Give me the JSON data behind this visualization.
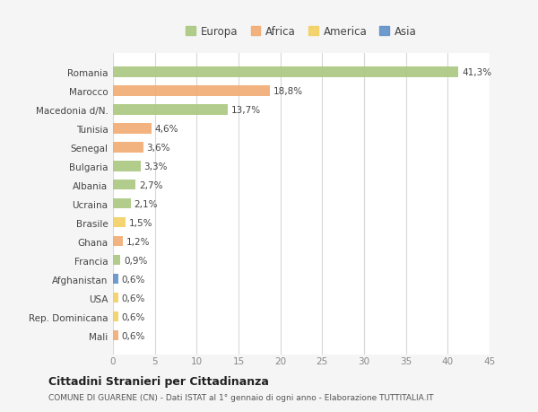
{
  "categories": [
    "Romania",
    "Marocco",
    "Macedonia d/N.",
    "Tunisia",
    "Senegal",
    "Bulgaria",
    "Albania",
    "Ucraina",
    "Brasile",
    "Ghana",
    "Francia",
    "Afghanistan",
    "USA",
    "Rep. Dominicana",
    "Mali"
  ],
  "values": [
    41.3,
    18.8,
    13.7,
    4.6,
    3.6,
    3.3,
    2.7,
    2.1,
    1.5,
    1.2,
    0.9,
    0.6,
    0.6,
    0.6,
    0.6
  ],
  "labels": [
    "41,3%",
    "18,8%",
    "13,7%",
    "4,6%",
    "3,6%",
    "3,3%",
    "2,7%",
    "2,1%",
    "1,5%",
    "1,2%",
    "0,9%",
    "0,6%",
    "0,6%",
    "0,6%",
    "0,6%"
  ],
  "continents": [
    "Europa",
    "Africa",
    "Europa",
    "Africa",
    "Africa",
    "Europa",
    "Europa",
    "Europa",
    "America",
    "Africa",
    "Europa",
    "Asia",
    "America",
    "America",
    "Africa"
  ],
  "colors": {
    "Europa": "#aac87f",
    "Africa": "#f2ab72",
    "America": "#f2d060",
    "Asia": "#6090c8"
  },
  "background_color": "#f5f5f5",
  "plot_bg_color": "#ffffff",
  "title": "Cittadini Stranieri per Cittadinanza",
  "subtitle": "COMUNE DI GUARENE (CN) - Dati ISTAT al 1° gennaio di ogni anno - Elaborazione TUTTITALIA.IT",
  "xlim": [
    0,
    45
  ],
  "xticks": [
    0,
    5,
    10,
    15,
    20,
    25,
    30,
    35,
    40,
    45
  ],
  "legend_entries": [
    "Europa",
    "Africa",
    "America",
    "Asia"
  ]
}
